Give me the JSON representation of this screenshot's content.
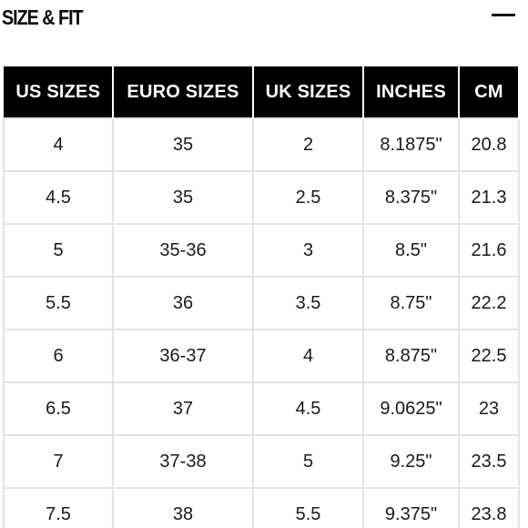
{
  "section": {
    "title": "SIZE & FIT",
    "toggle_icon": "minus-icon"
  },
  "table": {
    "headers": [
      "US SIZES",
      "EURO SIZES",
      "UK SIZES",
      "INCHES",
      "CM"
    ],
    "rows": [
      [
        "4",
        "35",
        "2",
        "8.1875\"",
        "20.8"
      ],
      [
        "4.5",
        "35",
        "2.5",
        "8.375\"",
        "21.3"
      ],
      [
        "5",
        "35-36",
        "3",
        "8.5\"",
        "21.6"
      ],
      [
        "5.5",
        "36",
        "3.5",
        "8.75\"",
        "22.2"
      ],
      [
        "6",
        "36-37",
        "4",
        "8.875\"",
        "22.5"
      ],
      [
        "6.5",
        "37",
        "4.5",
        "9.0625\"",
        "23"
      ],
      [
        "7",
        "37-38",
        "5",
        "9.25\"",
        "23.5"
      ],
      [
        "7.5",
        "38",
        "5.5",
        "9.375\"",
        "23.8"
      ]
    ]
  },
  "colors": {
    "header_bg": "#000000",
    "header_text": "#ffffff",
    "cell_border": "#e3e3e3"
  }
}
